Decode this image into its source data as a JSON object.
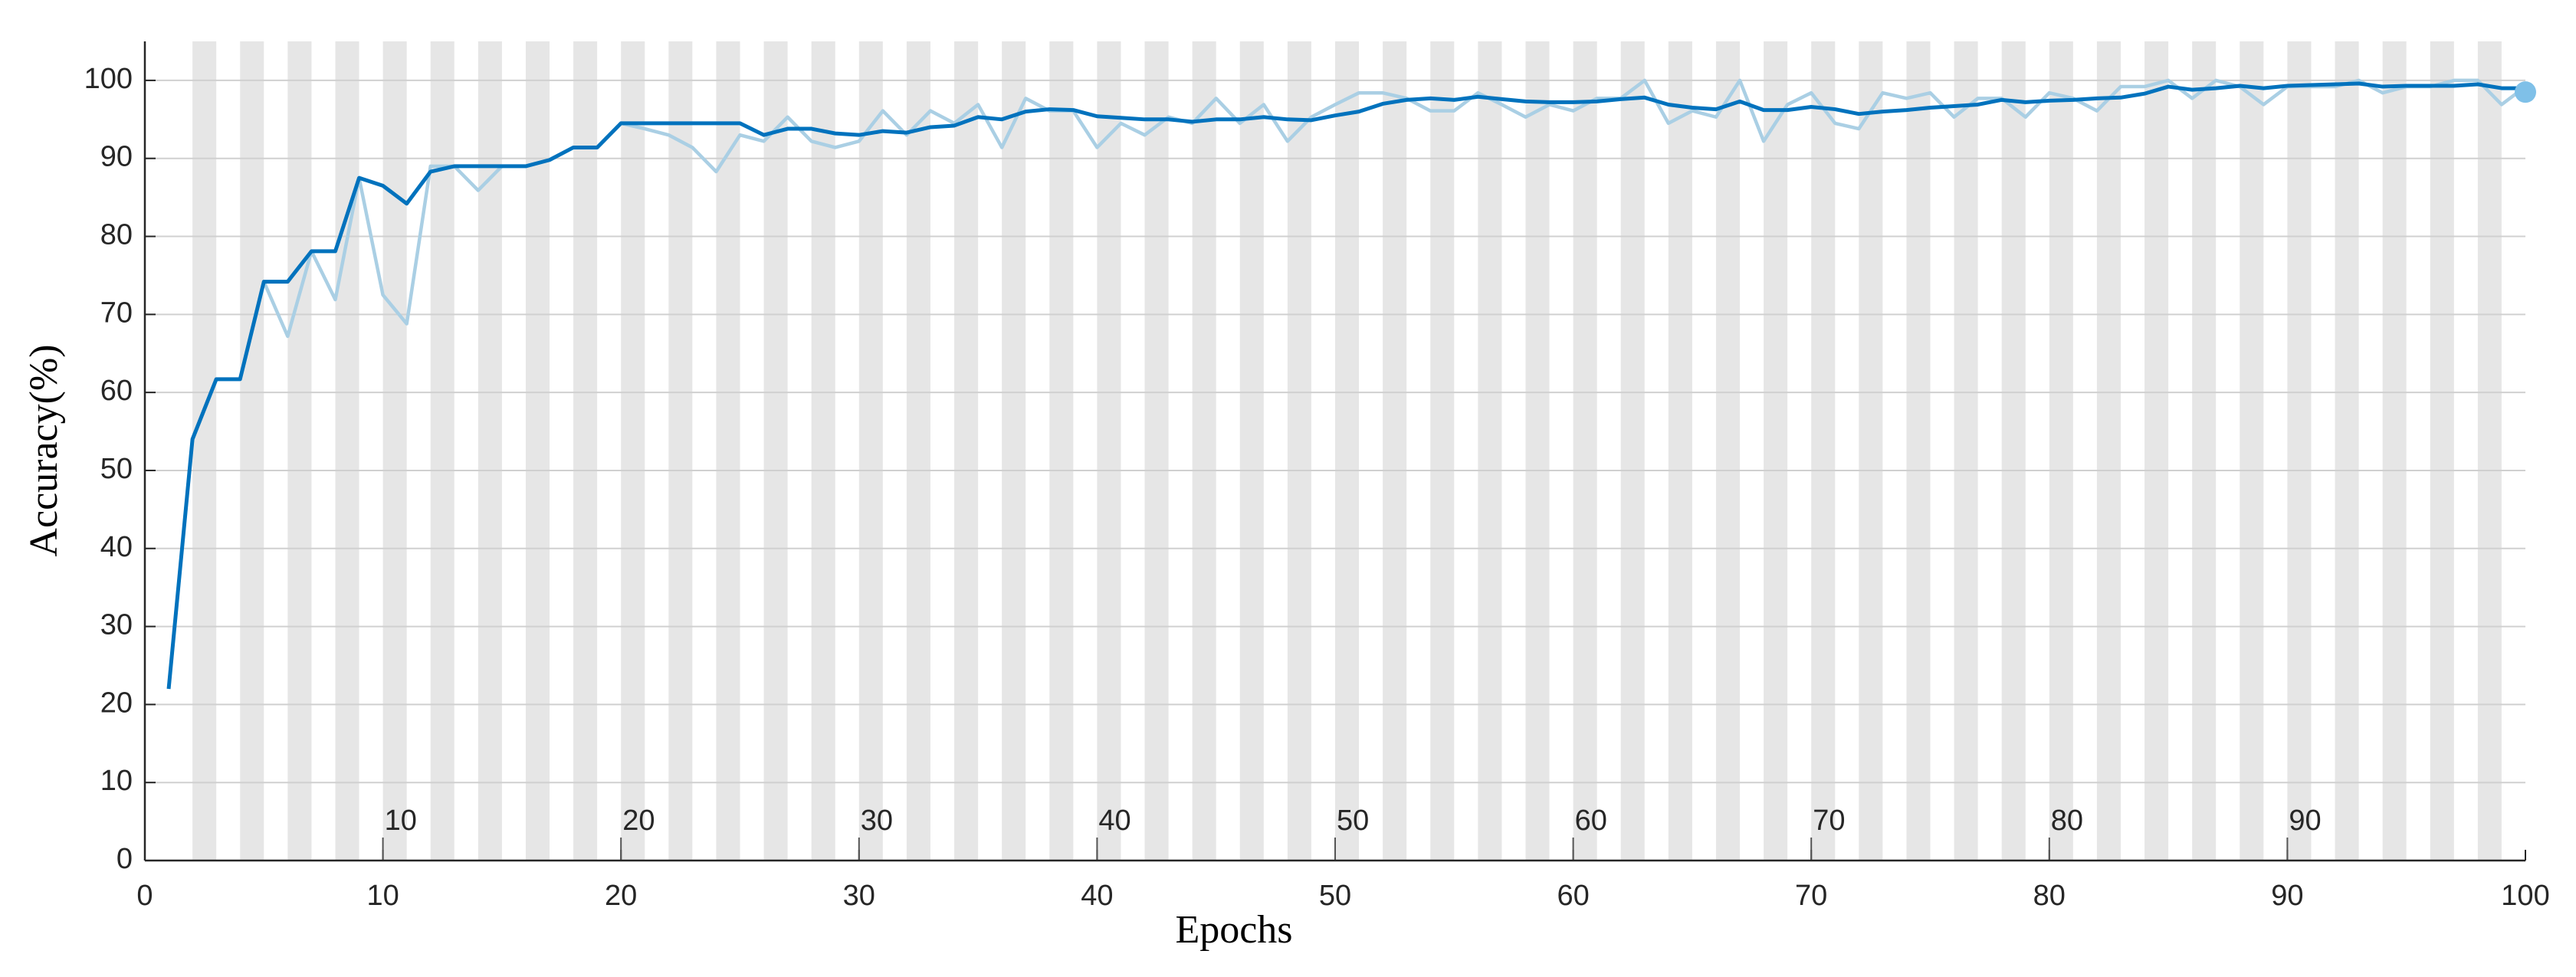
{
  "chart_data": {
    "type": "line",
    "x_label": "Epochs",
    "y_label": "Accuracy(%)",
    "x": [
      1,
      2,
      3,
      4,
      5,
      6,
      7,
      8,
      9,
      10,
      11,
      12,
      13,
      14,
      15,
      16,
      17,
      18,
      19,
      20,
      21,
      22,
      23,
      24,
      25,
      26,
      27,
      28,
      29,
      30,
      31,
      32,
      33,
      34,
      35,
      36,
      37,
      38,
      39,
      40,
      41,
      42,
      43,
      44,
      45,
      46,
      47,
      48,
      49,
      50,
      51,
      52,
      53,
      54,
      55,
      56,
      57,
      58,
      59,
      60,
      61,
      62,
      63,
      64,
      65,
      66,
      67,
      68,
      69,
      70,
      71,
      72,
      73,
      74,
      75,
      76,
      77,
      78,
      79,
      80,
      81,
      82,
      83,
      84,
      85,
      86,
      87,
      88,
      89,
      90,
      91,
      92,
      93,
      94,
      95,
      96,
      97,
      98,
      99,
      100
    ],
    "series": [
      {
        "color": "#aacfe4",
        "values": [
          22,
          54,
          61.7,
          61.7,
          74.2,
          67.2,
          78.1,
          71.9,
          87.5,
          72.5,
          68.8,
          89,
          89,
          85.9,
          89,
          89,
          89.8,
          91.4,
          91.4,
          94.5,
          93.8,
          93,
          91.4,
          88.3,
          93,
          92.2,
          95.3,
          92.2,
          91.4,
          92.2,
          96.1,
          93,
          96.1,
          94.5,
          96.9,
          91.4,
          97.7,
          96.1,
          96.1,
          91.4,
          94.5,
          93,
          95.3,
          94.5,
          97.7,
          94.5,
          96.9,
          92.2,
          95.3,
          96.9,
          98.4,
          98.4,
          97.7,
          96.1,
          96.1,
          98.4,
          96.9,
          95.3,
          96.9,
          96.1,
          97.7,
          97.7,
          100,
          94.5,
          96.1,
          95.3,
          100,
          92.2,
          96.9,
          98.4,
          94.5,
          93.8,
          98.4,
          97.7,
          98.4,
          95.3,
          97.7,
          97.7,
          95.3,
          98.4,
          97.7,
          96.1,
          99.2,
          99.2,
          100,
          97.7,
          100,
          99.2,
          96.9,
          99.2,
          99.2,
          99.2,
          100,
          98.4,
          99.2,
          99.2,
          100,
          100,
          96.9,
          99.2
        ]
      },
      {
        "color": "#0072bd",
        "values": [
          22,
          54,
          61.7,
          61.7,
          74.2,
          74.2,
          78.1,
          78.1,
          87.5,
          86.5,
          84.2,
          88.3,
          89,
          89,
          89,
          89,
          89.8,
          91.4,
          91.4,
          94.5,
          94.5,
          94.5,
          94.5,
          94.5,
          94.5,
          93,
          93.8,
          93.8,
          93.2,
          93,
          93.5,
          93.3,
          94,
          94.2,
          95.3,
          95,
          96,
          96.3,
          96.2,
          95.4,
          95.2,
          95,
          95,
          94.7,
          95,
          95,
          95.3,
          95,
          94.9,
          95.5,
          96,
          97,
          97.5,
          97.7,
          97.5,
          97.9,
          97.6,
          97.3,
          97.2,
          97.2,
          97.3,
          97.6,
          97.8,
          96.9,
          96.5,
          96.3,
          97.3,
          96.2,
          96.2,
          96.6,
          96.3,
          95.7,
          96,
          96.2,
          96.5,
          96.7,
          96.9,
          97.5,
          97.2,
          97.4,
          97.5,
          97.7,
          97.8,
          98.3,
          99.2,
          98.8,
          99,
          99.3,
          99,
          99.3,
          99.4,
          99.5,
          99.6,
          99.2,
          99.3,
          99.3,
          99.3,
          99.5,
          99,
          99
        ]
      }
    ],
    "final_point": {
      "x": 100,
      "y": 98.5,
      "color": "#7fc0e8"
    },
    "epoch_labels": [
      10,
      20,
      30,
      40,
      50,
      60,
      70,
      80,
      90
    ],
    "xlim": [
      0,
      100
    ],
    "xticks": [
      0,
      10,
      20,
      30,
      40,
      50,
      60,
      70,
      80,
      90,
      100
    ],
    "ylim": [
      0,
      105
    ],
    "yticks": [
      0,
      10,
      20,
      30,
      40,
      50,
      60,
      70,
      80,
      90,
      100
    ],
    "grid": true,
    "stripes": true
  }
}
